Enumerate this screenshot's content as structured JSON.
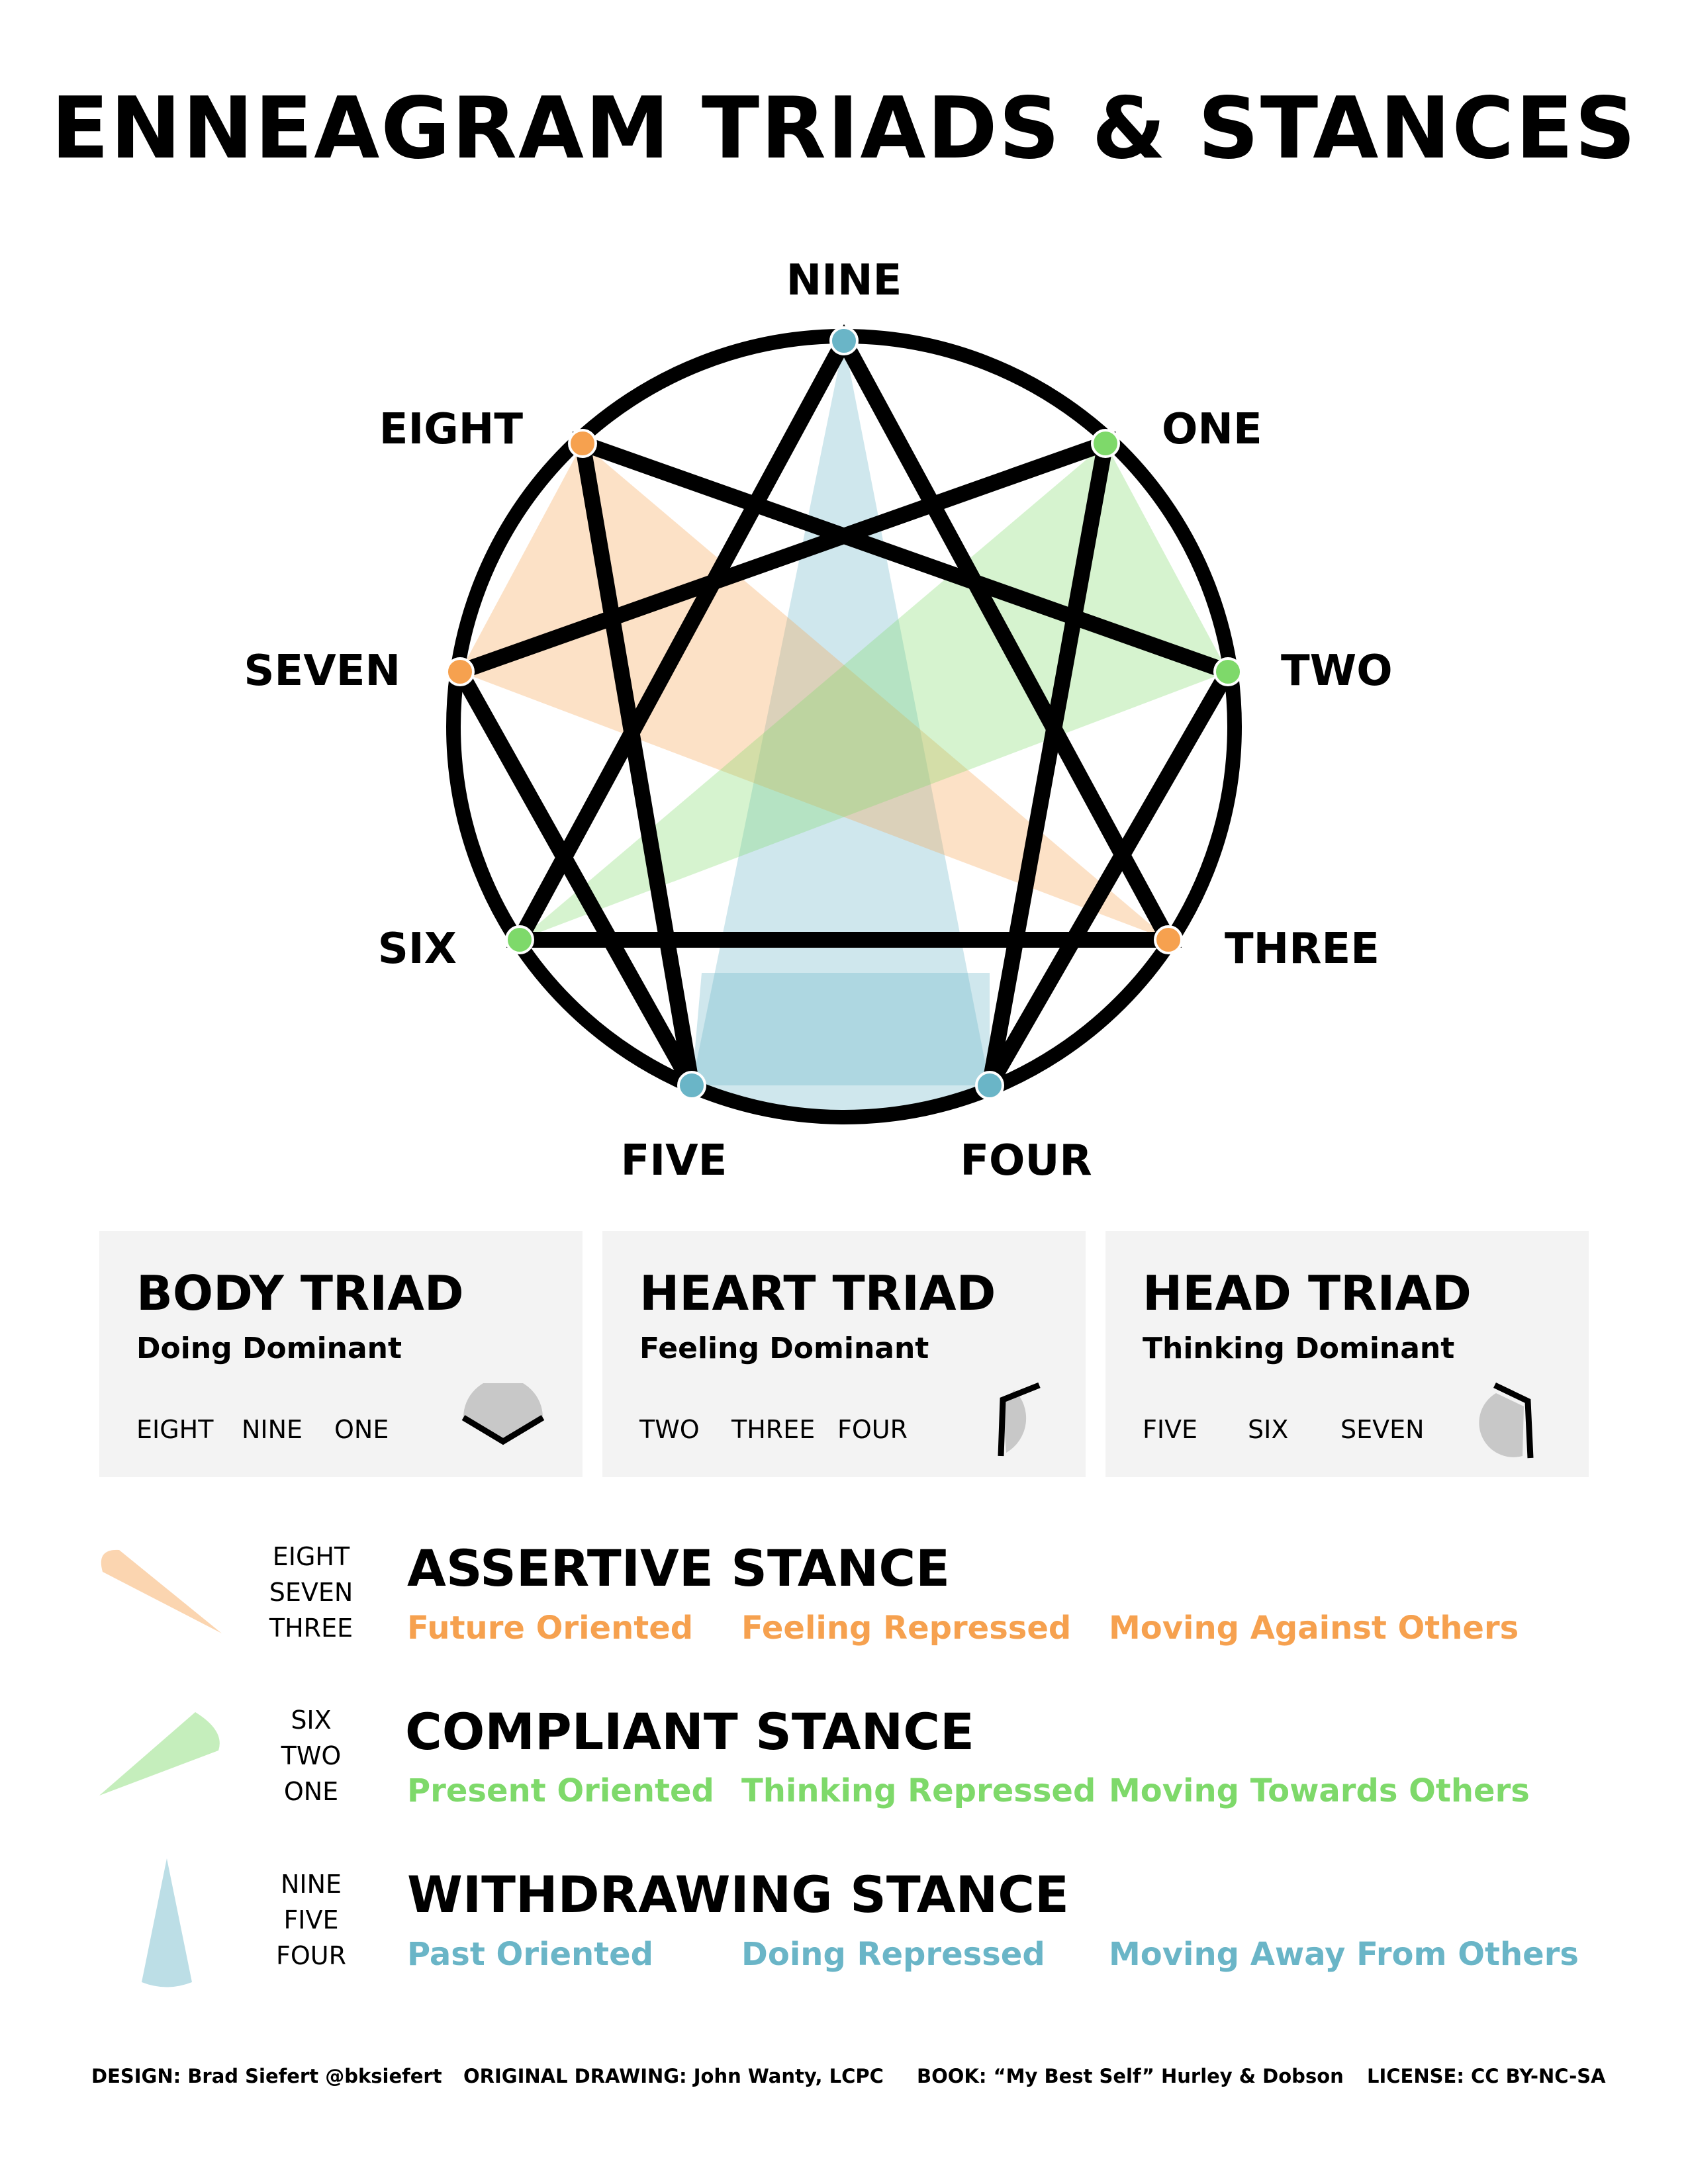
{
  "title": "ENNEAGRAM TRIADS & STANCES",
  "diagram": {
    "labels": {
      "nine": "NINE",
      "one": "ONE",
      "two": "TWO",
      "three": "THREE",
      "four": "FOUR",
      "five": "FIVE",
      "six": "SIX",
      "seven": "SEVEN",
      "eight": "EIGHT"
    },
    "colors": {
      "assertive": "#f6a14f",
      "compliant": "#7ed96a",
      "withdrawing": "#6ab5c7"
    }
  },
  "triads": [
    {
      "title": "BODY TRIAD",
      "subtitle": "Doing Dominant",
      "types": [
        "EIGHT",
        "NINE",
        "ONE"
      ]
    },
    {
      "title": "HEART TRIAD",
      "subtitle": "Feeling Dominant",
      "types": [
        "TWO",
        "THREE",
        "FOUR"
      ]
    },
    {
      "title": "HEAD TRIAD",
      "subtitle": "Thinking Dominant",
      "types": [
        "FIVE",
        "SIX",
        "SEVEN"
      ]
    }
  ],
  "stances": [
    {
      "types": [
        "EIGHT",
        "SEVEN",
        "THREE"
      ],
      "title": "ASSERTIVE STANCE",
      "attributes": [
        "Future Oriented",
        "Feeling Repressed",
        "Moving Against Others"
      ],
      "color": "#f6a14f"
    },
    {
      "types": [
        "SIX",
        "TWO",
        "ONE"
      ],
      "title": "COMPLIANT STANCE",
      "attributes": [
        "Present Oriented",
        "Thinking Repressed",
        "Moving Towards Others"
      ],
      "color": "#7ed96a"
    },
    {
      "types": [
        "NINE",
        "FIVE",
        "FOUR"
      ],
      "title": "WITHDRAWING STANCE",
      "attributes": [
        "Past Oriented",
        "Doing Repressed",
        "Moving Away From Others"
      ],
      "color": "#6ab5c7"
    }
  ],
  "footer": {
    "design": "DESIGN: Brad Siefert @bksiefert",
    "original": "ORIGINAL DRAWING: John Wanty, LCPC",
    "book": "BOOK: “My Best Self” Hurley & Dobson",
    "license": "LICENSE: CC BY-NC-SA"
  }
}
